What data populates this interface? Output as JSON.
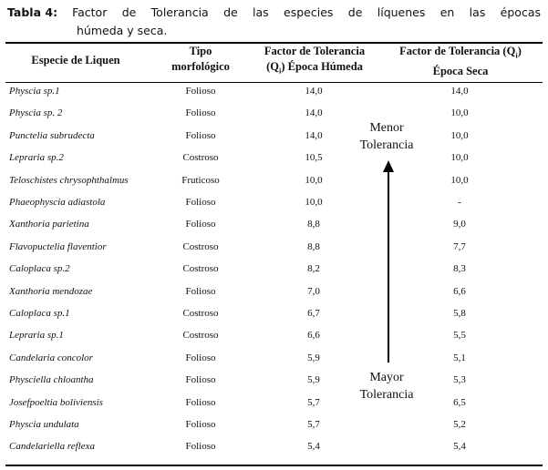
{
  "caption": {
    "label": "Tabla 4:",
    "title_line1": "Factor de Tolerancia de las especies de líquenes en las épocas",
    "title_line2": "húmeda y seca."
  },
  "headers": {
    "species": "Especie de Liquen",
    "type_line1": "Tipo",
    "type_line2": "morfológico",
    "wet_line1": "Factor de Tolerancia",
    "wet_pre": "(Q",
    "wet_sub": "i",
    "wet_post": ") Época Húmeda",
    "dry_line1": "Factor de Tolerancia (Q",
    "dry_sub": "i",
    "dry_post": ")",
    "dry_line2": "Época Seca"
  },
  "rows": [
    {
      "species": "Physcia sp.1",
      "type": "Folioso",
      "wet": "14,0",
      "dry": "14,0"
    },
    {
      "species": "Physcia sp. 2",
      "type": "Folioso",
      "wet": "14,0",
      "dry": "10,0"
    },
    {
      "species": "Punctelia subrudecta",
      "type": "Folioso",
      "wet": "14,0",
      "dry": "10,0"
    },
    {
      "species": "Lepraria sp.2",
      "type": "Costroso",
      "wet": "10,5",
      "dry": "10,0"
    },
    {
      "species": "Teloschistes chrysophthalmus",
      "type": "Fruticoso",
      "wet": "10,0",
      "dry": "10,0"
    },
    {
      "species": "Phaeophyscia adiastola",
      "type": "Folioso",
      "wet": "10,0",
      "dry": "-"
    },
    {
      "species": "Xanthoria parietina",
      "type": "Folioso",
      "wet": "8,8",
      "dry": "9,0"
    },
    {
      "species": "Flavopuctelia flaventior",
      "type": "Costroso",
      "wet": "8,8",
      "dry": "7,7"
    },
    {
      "species": "Caloplaca sp.2",
      "type": "Costroso",
      "wet": "8,2",
      "dry": "8,3"
    },
    {
      "species": "Xanthoria mendozae",
      "type": "Folioso",
      "wet": "7,0",
      "dry": "6,6"
    },
    {
      "species": "Caloplaca sp.1",
      "type": "Costroso",
      "wet": "6,7",
      "dry": "5,8"
    },
    {
      "species": "Lepraria sp.1",
      "type": "Costroso",
      "wet": "6,6",
      "dry": "5,5"
    },
    {
      "species": "Candelaria concolor",
      "type": "Folioso",
      "wet": "5,9",
      "dry": "5,1"
    },
    {
      "species": "Physciella chloantha",
      "type": "Folioso",
      "wet": "5,9",
      "dry": "5,3"
    },
    {
      "species": "Josefpoeltia boliviensis",
      "type": "Folioso",
      "wet": "5,7",
      "dry": "6,5"
    },
    {
      "species": "Physcia undulata",
      "type": "Folioso",
      "wet": "5,7",
      "dry": "5,2"
    },
    {
      "species": "Candelariella reflexa",
      "type": "Folioso",
      "wet": "5,4",
      "dry": "5,4"
    }
  ],
  "annotations": {
    "top_line1": "Menor",
    "top_line2": "Tolerancia",
    "bottom_line1": "Mayor",
    "bottom_line2": "Tolerancia"
  }
}
